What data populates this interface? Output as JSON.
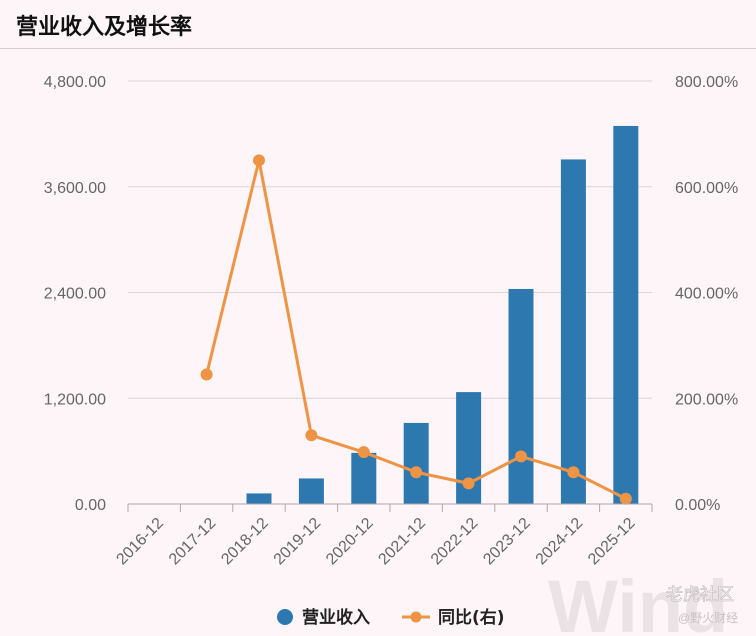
{
  "title": "营业收入及增长率",
  "chart_data": {
    "type": "bar",
    "categories": [
      "2016-12",
      "2017-12",
      "2018-12",
      "2019-12",
      "2020-12",
      "2021-12",
      "2022-12",
      "2023-12",
      "2024-12",
      "2025-12"
    ],
    "series": [
      {
        "name": "营业收入",
        "type": "bar",
        "axis": "left",
        "color": "#2e78b0",
        "values": [
          0,
          5,
          120,
          290,
          580,
          920,
          1270,
          2440,
          3910,
          4290
        ]
      },
      {
        "name": "同比(右)",
        "type": "line",
        "axis": "right",
        "color": "#ee9444",
        "values": [
          null,
          245,
          650,
          130,
          98,
          60,
          39,
          90,
          60,
          10
        ]
      }
    ],
    "y_left": {
      "ylim": [
        0,
        4800
      ],
      "ticks": [
        "0.00",
        "1,200.00",
        "2,400.00",
        "3,600.00",
        "4,800.00"
      ]
    },
    "y_right": {
      "ylim": [
        0,
        800
      ],
      "ticks": [
        "0.00%",
        "200.00%",
        "400.00%",
        "600.00%",
        "800.00%"
      ]
    },
    "grid": true,
    "legend": "bottom"
  },
  "watermark": {
    "wind": "Wind",
    "site": "老虎社区",
    "source": "@野火财经"
  }
}
